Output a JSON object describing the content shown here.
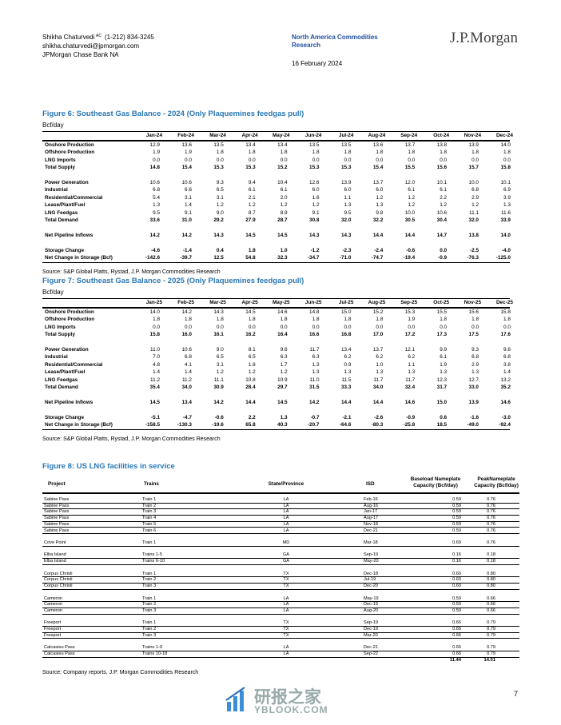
{
  "header": {
    "author": "Shikha Chaturvedi",
    "author_sup": "AC",
    "phone": "(1-212) 834-3245",
    "email": "shikha.chaturvedi@jpmorgan.com",
    "bank": "JPMorgan Chase Bank NA",
    "dept": "North America Commodities Research",
    "date": "16 February 2024",
    "logo": "J.P.Morgan"
  },
  "figures": [
    {
      "title": "Figure 6: Southeast Gas Balance - 2024 (Only Plaquemines feedgas pull)",
      "unit": "Bcf/day",
      "columns": [
        "Jan-24",
        "Feb-24",
        "Mar-24",
        "Apr-24",
        "May-24",
        "Jun-24",
        "Jul-24",
        "Aug-24",
        "Sep-24",
        "Oct-24",
        "Nov-24",
        "Dec-24"
      ],
      "sections": [
        [
          {
            "label": "Onshore Production",
            "values": [
              "12.9",
              "13.6",
              "13.5",
              "13.4",
              "13.4",
              "13.5",
              "13.5",
              "13.6",
              "13.7",
              "13.8",
              "13.9",
              "14.0"
            ]
          },
          {
            "label": "Offshore Production",
            "values": [
              "1.9",
              "1.9",
              "1.8",
              "1.8",
              "1.8",
              "1.8",
              "1.8",
              "1.8",
              "1.8",
              "1.8",
              "1.8",
              "1.8"
            ]
          },
          {
            "label": "LNG Imports",
            "values": [
              "0.0",
              "0.0",
              "0.0",
              "0.0",
              "0.0",
              "0.0",
              "0.0",
              "0.0",
              "0.0",
              "0.0",
              "0.0",
              "0.0"
            ]
          },
          {
            "label": "Total Supply",
            "values": [
              "14.8",
              "15.4",
              "15.3",
              "15.3",
              "15.2",
              "15.3",
              "15.3",
              "15.4",
              "15.5",
              "15.6",
              "15.7",
              "15.8"
            ]
          }
        ],
        [
          {
            "label": "Power Generation",
            "values": [
              "10.6",
              "10.6",
              "9.3",
              "9.4",
              "10.4",
              "12.6",
              "13.9",
              "13.7",
              "12.0",
              "10.1",
              "10.0",
              "10.1"
            ]
          },
          {
            "label": "Industrial",
            "values": [
              "6.8",
              "6.6",
              "6.5",
              "6.1",
              "6.1",
              "6.0",
              "6.0",
              "6.0",
              "6.1",
              "6.1",
              "6.8",
              "6.9"
            ]
          },
          {
            "label": "Residential/Commercial",
            "values": [
              "5.4",
              "3.1",
              "3.1",
              "2.1",
              "2.0",
              "1.6",
              "1.1",
              "1.2",
              "1.2",
              "2.2",
              "2.9",
              "3.9"
            ]
          },
          {
            "label": "Lease/Plant/Fuel",
            "values": [
              "1.3",
              "1.4",
              "1.2",
              "1.2",
              "1.2",
              "1.2",
              "1.3",
              "1.3",
              "1.2",
              "1.2",
              "1.2",
              "1.3"
            ]
          },
          {
            "label": "LNG Feedgas",
            "values": [
              "9.5",
              "9.1",
              "9.0",
              "8.7",
              "8.9",
              "9.1",
              "9.5",
              "9.8",
              "10.0",
              "10.6",
              "11.1",
              "11.6"
            ]
          },
          {
            "label": "Total Demand",
            "values": [
              "33.6",
              "31.0",
              "29.2",
              "27.9",
              "28.7",
              "30.8",
              "32.0",
              "32.2",
              "30.5",
              "30.4",
              "32.0",
              "33.9"
            ]
          }
        ],
        [
          {
            "label": "Net Pipeline Inflows",
            "values": [
              "14.2",
              "14.2",
              "14.3",
              "14.5",
              "14.5",
              "14.3",
              "14.3",
              "14.4",
              "14.4",
              "14.7",
              "13.8",
              "14.0"
            ]
          }
        ],
        [
          {
            "label": "Storage Change",
            "values": [
              "-4.6",
              "-1.4",
              "0.4",
              "1.8",
              "1.0",
              "-1.2",
              "-2.3",
              "-2.4",
              "-0.6",
              "0.0",
              "-2.5",
              "-4.0"
            ]
          },
          {
            "label": "Net Change in Storage (Bcf)",
            "values": [
              "-142.6",
              "-39.7",
              "12.5",
              "54.8",
              "32.3",
              "-34.7",
              "-71.0",
              "-74.7",
              "-19.4",
              "-0.9",
              "-76.3",
              "-125.0"
            ]
          }
        ]
      ],
      "source": "Source: S&P Global Platts, Rystad, J.P. Morgan Commodities Research"
    },
    {
      "title": "Figure 7: Southeast Gas Balance - 2025 (Only Plaquemines feedgas pull)",
      "unit": "Bcf/day",
      "columns": [
        "Jan-25",
        "Feb-25",
        "Mar-25",
        "Apr-25",
        "May-25",
        "Jun-25",
        "Jul-25",
        "Aug-25",
        "Sep-25",
        "Oct-25",
        "Nov-25",
        "Dec-25"
      ],
      "sections": [
        [
          {
            "label": "Onshore Production",
            "values": [
              "14.0",
              "14.2",
              "14.3",
              "14.5",
              "14.6",
              "14.8",
              "15.0",
              "15.2",
              "15.3",
              "15.5",
              "15.6",
              "15.8"
            ]
          },
          {
            "label": "Offshore Production",
            "values": [
              "1.8",
              "1.8",
              "1.8",
              "1.8",
              "1.8",
              "1.8",
              "1.8",
              "1.8",
              "1.9",
              "1.8",
              "1.8",
              "1.8"
            ]
          },
          {
            "label": "LNG Imports",
            "values": [
              "0.0",
              "0.0",
              "0.0",
              "0.0",
              "0.0",
              "0.0",
              "0.0",
              "0.0",
              "0.0",
              "0.0",
              "0.0",
              "0.0"
            ]
          },
          {
            "label": "Total Supply",
            "values": [
              "15.8",
              "16.0",
              "16.1",
              "16.2",
              "16.4",
              "16.6",
              "16.8",
              "17.0",
              "17.2",
              "17.3",
              "17.5",
              "17.6"
            ]
          }
        ],
        [
          {
            "label": "Power Generation",
            "values": [
              "11.0",
              "10.6",
              "9.0",
              "8.1",
              "9.6",
              "11.7",
              "13.4",
              "13.7",
              "12.1",
              "9.9",
              "9.3",
              "9.6"
            ]
          },
          {
            "label": "Industrial",
            "values": [
              "7.0",
              "6.8",
              "6.5",
              "6.5",
              "6.3",
              "6.3",
              "6.2",
              "6.2",
              "6.2",
              "6.1",
              "6.8",
              "6.8"
            ]
          },
          {
            "label": "Residential/Commercial",
            "values": [
              "4.8",
              "4.1",
              "3.1",
              "1.8",
              "1.7",
              "1.3",
              "0.9",
              "1.0",
              "1.1",
              "1.9",
              "2.9",
              "3.8"
            ]
          },
          {
            "label": "Lease/Plant/Fuel",
            "values": [
              "1.4",
              "1.4",
              "1.2",
              "1.2",
              "1.2",
              "1.3",
              "1.3",
              "1.3",
              "1.3",
              "1.3",
              "1.3",
              "1.4"
            ]
          },
          {
            "label": "LNG Feedgas",
            "values": [
              "11.2",
              "11.2",
              "11.1",
              "10.8",
              "10.9",
              "11.0",
              "11.5",
              "11.7",
              "11.7",
              "12.3",
              "12.7",
              "13.2"
            ]
          },
          {
            "label": "Total Demand",
            "values": [
              "35.4",
              "34.0",
              "30.9",
              "28.4",
              "29.7",
              "31.5",
              "33.3",
              "34.0",
              "32.4",
              "31.7",
              "33.0",
              "35.2"
            ]
          }
        ],
        [
          {
            "label": "Net Pipeline Inflows",
            "values": [
              "14.5",
              "13.4",
              "14.2",
              "14.4",
              "14.5",
              "14.2",
              "14.4",
              "14.4",
              "14.6",
              "15.0",
              "13.9",
              "14.6"
            ]
          }
        ],
        [
          {
            "label": "Storage Change",
            "values": [
              "-5.1",
              "-4.7",
              "-0.6",
              "2.2",
              "1.3",
              "-0.7",
              "-2.1",
              "-2.6",
              "-0.9",
              "0.6",
              "-1.6",
              "-3.0"
            ]
          },
          {
            "label": "Net Change in Storage (Bcf)",
            "values": [
              "-158.5",
              "-130.3",
              "-19.6",
              "65.8",
              "40.3",
              "-20.7",
              "-64.6",
              "-80.3",
              "-25.8",
              "18.5",
              "-49.0",
              "-92.4"
            ]
          }
        ]
      ],
      "source": "Source: S&P Global Platts, Rystad, J.P. Morgan Commodities Research"
    }
  ],
  "lng": {
    "title": "Figure 8: US LNG facilities in service",
    "columns": [
      "Project",
      "Trains",
      "State/Province",
      "ISD",
      "Baseload Nameplate Capacity (Bcf/day)",
      "PeakNameplate Capacity (Bcf/day)"
    ],
    "groups": [
      [
        [
          "Sabine Pass",
          "Train 1",
          "LA",
          "Feb-16",
          "0.59",
          "0.76"
        ],
        [
          "Sabine Pass",
          "Train 2",
          "LA",
          "Aug-16",
          "0.59",
          "0.76"
        ],
        [
          "Sabine Pass",
          "Train 3",
          "LA",
          "Jan-17",
          "0.59",
          "0.76"
        ],
        [
          "Sabine Pass",
          "Train 4",
          "LA",
          "Aug-17",
          "0.59",
          "0.76"
        ],
        [
          "Sabine Pass",
          "Train 5",
          "LA",
          "Nov-18",
          "0.59",
          "0.76"
        ],
        [
          "Sabine Pass",
          "Train 6",
          "LA",
          "Dec-21",
          "0.59",
          "0.76"
        ]
      ],
      [
        [
          "Cove Point",
          "Train 1",
          "MD",
          "Mar-18",
          "0.69",
          "0.76"
        ]
      ],
      [
        [
          "Elba Island",
          "Trains 1-5",
          "GA",
          "Sep-19",
          "0.16",
          "0.18"
        ],
        [
          "Elba Island",
          "Trains 6-10",
          "GA",
          "May-20",
          "0.16",
          "0.18"
        ]
      ],
      [
        [
          "Corpus Christi",
          "Train 1",
          "TX",
          "Dec-18",
          "0.60",
          "0.80"
        ],
        [
          "Corpus Christi",
          "Train 2",
          "TX",
          "Jul-19",
          "0.60",
          "0.80"
        ],
        [
          "Corpus Christi",
          "Train 3",
          "TX",
          "Dec-20",
          "0.60",
          "0.80"
        ]
      ],
      [
        [
          "Cameron",
          "Train 1",
          "LA",
          "May-19",
          "0.59",
          "0.66"
        ],
        [
          "Cameron",
          "Train 2",
          "LA",
          "Dec-19",
          "0.59",
          "0.66"
        ],
        [
          "Cameron",
          "Train 3",
          "LA",
          "Aug-20",
          "0.59",
          "0.66"
        ]
      ],
      [
        [
          "Freeport",
          "Train 1",
          "TX",
          "Sep-19",
          "0.66",
          "0.79"
        ],
        [
          "Freeport",
          "Train 2",
          "TX",
          "Dec-19",
          "0.66",
          "0.79"
        ],
        [
          "Freeport",
          "Train 3",
          "TX",
          "Mar-20",
          "0.66",
          "0.79"
        ]
      ],
      [
        [
          "Calcasieu Pass",
          "Trains 1-9",
          "LA",
          "Dec-21",
          "0.66",
          "0.79"
        ],
        [
          "Calcasieu Pass",
          "Trains 10-18",
          "LA",
          "Sep-22",
          "0.66",
          "0.79"
        ]
      ]
    ],
    "totals": [
      "11.44",
      "14.01"
    ],
    "source": "Source: Company reports, J.P. Morgan Commodities Research"
  },
  "page_number": "7",
  "watermark": {
    "name": "研报之家",
    "url": "YBLOOK.COM"
  }
}
